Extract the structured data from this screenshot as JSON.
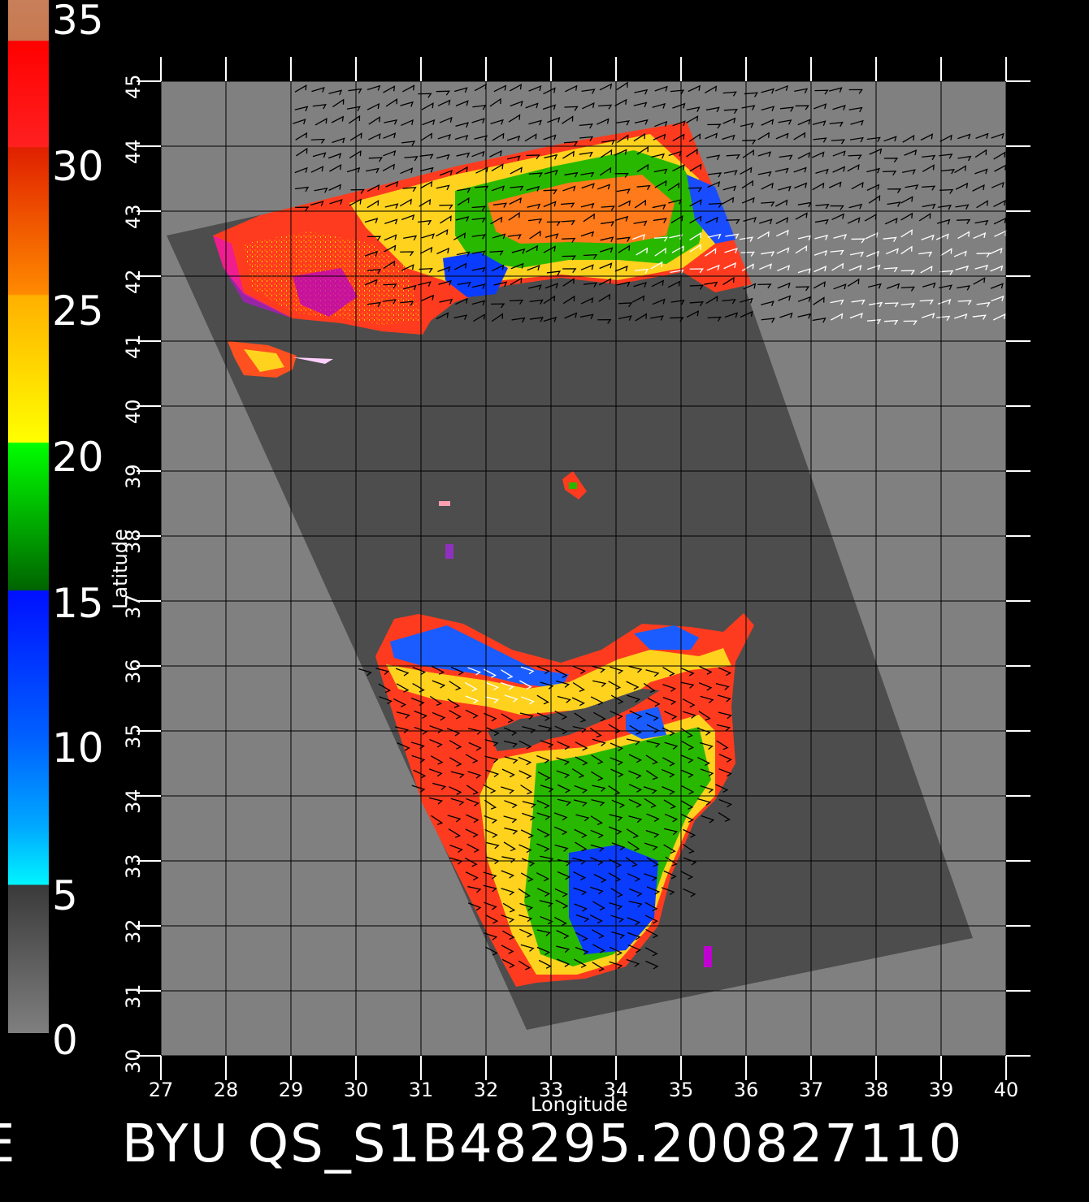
{
  "colorbar": {
    "ticks": [
      "35",
      "30",
      "25",
      "20",
      "15",
      "10",
      "5",
      "0"
    ]
  },
  "map": {
    "xlabel": "Longitude",
    "ylabel": "Latitude",
    "lon_ticks": [
      "27",
      "28",
      "29",
      "30",
      "31",
      "32",
      "33",
      "34",
      "35",
      "36",
      "37",
      "38",
      "39",
      "40"
    ],
    "lat_ticks": [
      "30",
      "31",
      "32",
      "33",
      "34",
      "35",
      "36",
      "37",
      "38",
      "39",
      "40",
      "41",
      "42",
      "43",
      "44",
      "45"
    ],
    "lon_range": [
      27,
      40
    ],
    "lat_range": [
      30,
      45
    ],
    "colors": {
      "background": "#000000",
      "land": "#808080",
      "swath": "#4d4d4d",
      "grid": "#000000"
    }
  },
  "footer": {
    "left_fragment": "E",
    "title": "BYU QS_S1B48295.200827110"
  },
  "chart_data": {
    "type": "heatmap",
    "title": "BYU QS_S1B48295.200827110",
    "xlabel": "Longitude",
    "ylabel": "Latitude",
    "xlim": [
      27,
      40
    ],
    "ylim": [
      30,
      45
    ],
    "colorbar_range": [
      0,
      35
    ],
    "colorbar_ticks": [
      0,
      5,
      10,
      15,
      20,
      25,
      30,
      35
    ]
  }
}
